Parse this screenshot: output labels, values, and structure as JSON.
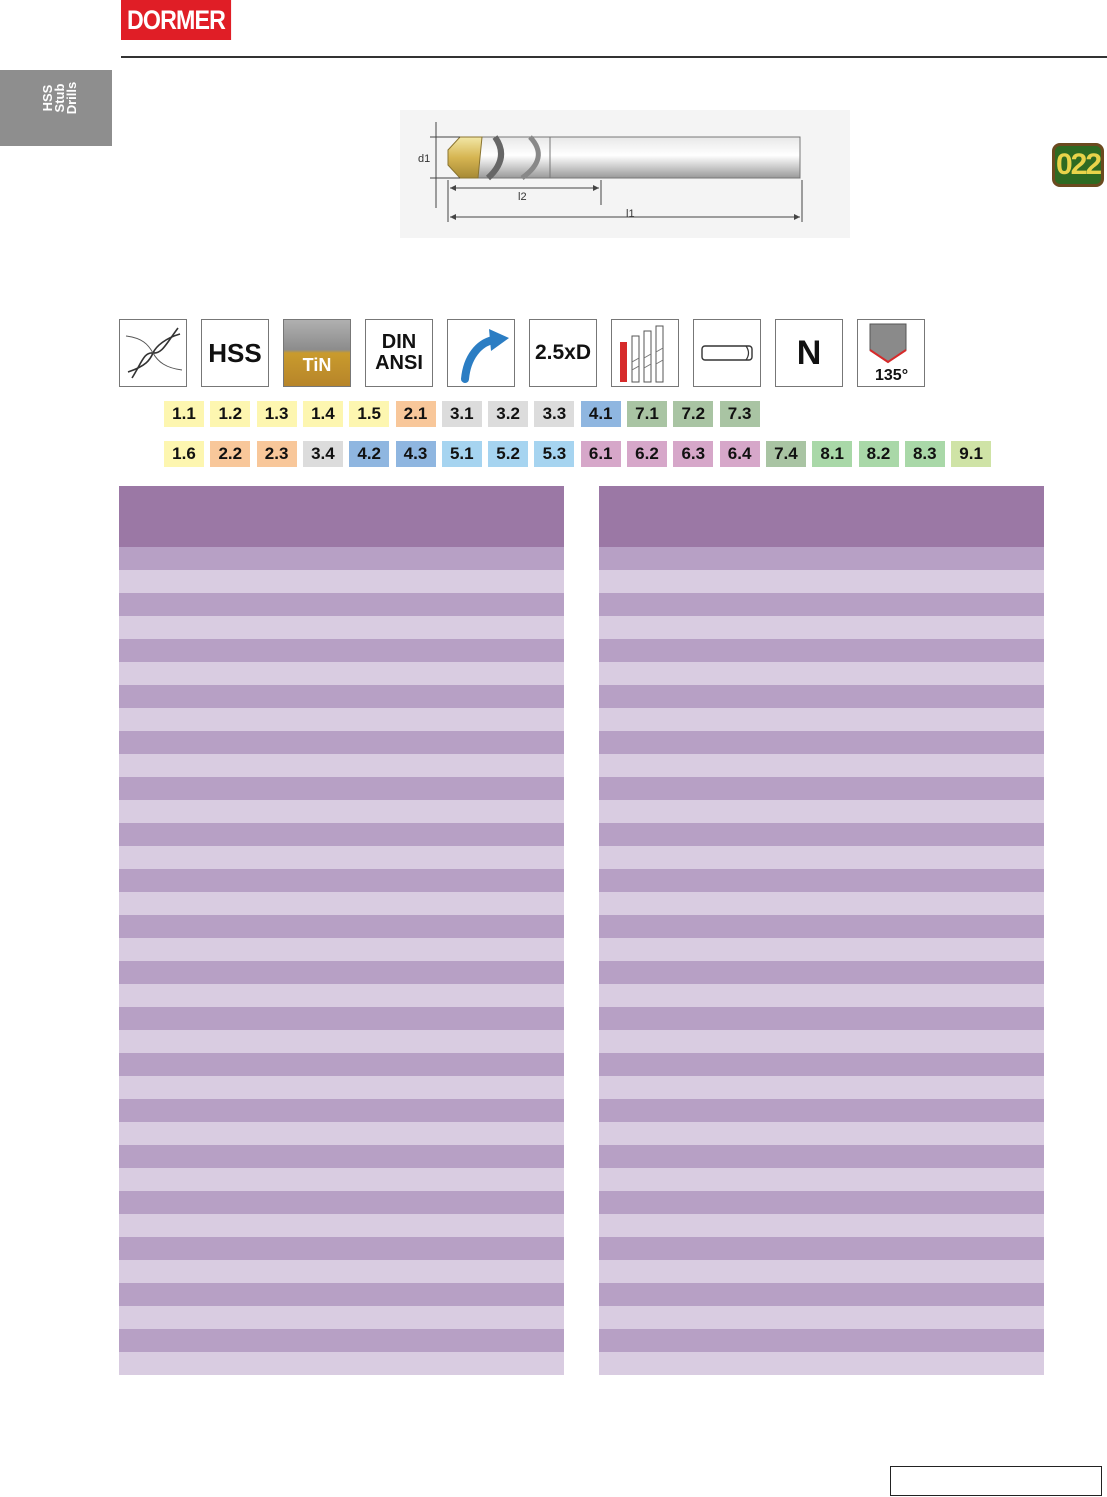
{
  "header": {
    "brand": "DORMER"
  },
  "side_tab": {
    "lines": [
      "HSS",
      "Stub",
      "Drills"
    ]
  },
  "drawing": {
    "labels": {
      "diameter": "d1",
      "flute_length": "l2",
      "overall_length": "l1"
    }
  },
  "product_code": "022",
  "feature_icons": [
    {
      "name": "flute-profile-icon",
      "text": ""
    },
    {
      "name": "hss-icon",
      "text": "HSS"
    },
    {
      "name": "tin-coating-icon",
      "text": "TiN"
    },
    {
      "name": "din-ansi-icon",
      "text": "DIN\nANSI"
    },
    {
      "name": "right-hand-spiral-icon",
      "text": ""
    },
    {
      "name": "depth-icon",
      "text": "2.5xD"
    },
    {
      "name": "drill-lengths-icon",
      "text": ""
    },
    {
      "name": "cylindrical-shank-icon",
      "text": ""
    },
    {
      "name": "type-n-icon",
      "text": "N"
    },
    {
      "name": "point-angle-icon",
      "text": "135°"
    }
  ],
  "materials_primary": [
    {
      "code": "1.1",
      "color": "#fdf6b0"
    },
    {
      "code": "1.2",
      "color": "#fdf6b0"
    },
    {
      "code": "1.3",
      "color": "#fdf6b0"
    },
    {
      "code": "1.4",
      "color": "#fdf6b0"
    },
    {
      "code": "1.5",
      "color": "#fdf6b0"
    },
    {
      "code": "2.1",
      "color": "#f8c79a"
    },
    {
      "code": "3.1",
      "color": "#dcdcdc"
    },
    {
      "code": "3.2",
      "color": "#dcdcdc"
    },
    {
      "code": "3.3",
      "color": "#dcdcdc"
    },
    {
      "code": "4.1",
      "color": "#8fb6e0"
    },
    {
      "code": "7.1",
      "color": "#a9c4a3"
    },
    {
      "code": "7.2",
      "color": "#a9c4a3"
    },
    {
      "code": "7.3",
      "color": "#a9c4a3"
    }
  ],
  "materials_secondary": [
    {
      "code": "1.6",
      "color": "#fdf6b0"
    },
    {
      "code": "2.2",
      "color": "#f8c79a"
    },
    {
      "code": "2.3",
      "color": "#f8c79a"
    },
    {
      "code": "3.4",
      "color": "#dcdcdc"
    },
    {
      "code": "4.2",
      "color": "#8fb6e0"
    },
    {
      "code": "4.3",
      "color": "#8fb6e0"
    },
    {
      "code": "5.1",
      "color": "#a6d4f0"
    },
    {
      "code": "5.2",
      "color": "#a6d4f0"
    },
    {
      "code": "5.3",
      "color": "#a6d4f0"
    },
    {
      "code": "6.1",
      "color": "#d6a7c9"
    },
    {
      "code": "6.2",
      "color": "#d6a7c9"
    },
    {
      "code": "6.3",
      "color": "#d6a7c9"
    },
    {
      "code": "6.4",
      "color": "#d6a7c9"
    },
    {
      "code": "7.4",
      "color": "#a9c4a3"
    },
    {
      "code": "8.1",
      "color": "#a9d8a8"
    },
    {
      "code": "8.2",
      "color": "#a9d8a8"
    },
    {
      "code": "8.3",
      "color": "#a9d8a8"
    },
    {
      "code": "9.1",
      "color": "#cfe3a6"
    }
  ],
  "tables": {
    "row_count": 36
  },
  "colors": {
    "brand_red": "#e01e26",
    "table_header": "#9b78a5",
    "row_dark": "#b7a0c5",
    "row_light": "#d9cce1",
    "side_tab": "#8e8e8e"
  }
}
